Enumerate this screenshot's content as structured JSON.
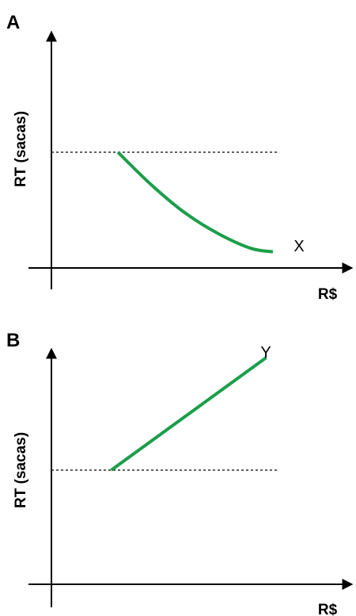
{
  "colors": {
    "curve": "#1b9e4b",
    "axis": "#000000",
    "reference": "#000000"
  },
  "chart_data": [
    {
      "type": "line",
      "panel_label": "A",
      "ylabel": "RT (sacas)",
      "xlabel": "R$",
      "series": [
        {
          "name": "X",
          "shape": "decreasing convex curve",
          "x": [
            0.3,
            0.45,
            0.6,
            0.75,
            0.9,
            1.0
          ],
          "y": [
            1.0,
            0.72,
            0.48,
            0.3,
            0.17,
            0.14
          ]
        }
      ],
      "reference_line": {
        "style": "dashed",
        "y": 1.0
      },
      "grid": false
    },
    {
      "type": "line",
      "panel_label": "B",
      "ylabel": "RT (sacas)",
      "xlabel": "R$",
      "series": [
        {
          "name": "Y",
          "shape": "increasing straight line",
          "x": [
            0.27,
            0.97
          ],
          "y": [
            0.0,
            1.0
          ]
        }
      ],
      "reference_line": {
        "style": "dashed",
        "y": 0.0
      },
      "grid": false
    }
  ]
}
